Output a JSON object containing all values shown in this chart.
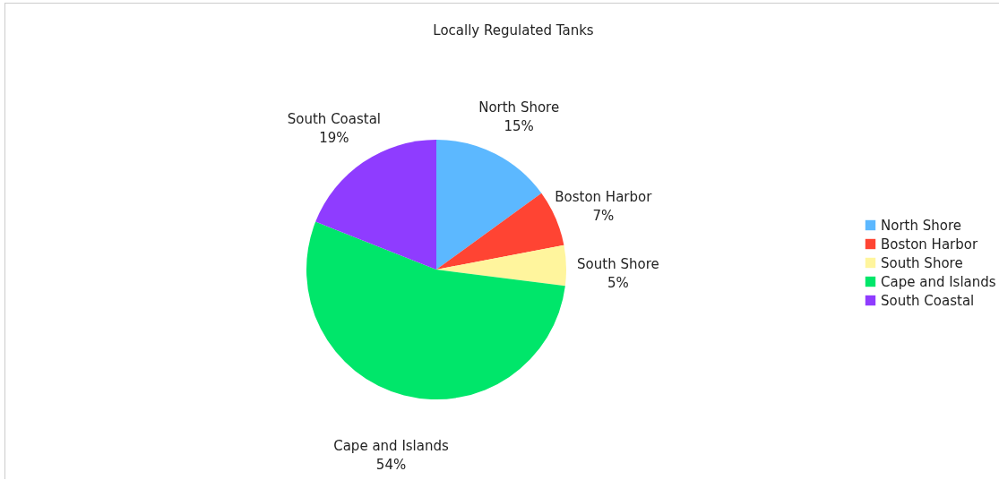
{
  "chart_data": {
    "type": "pie",
    "title": "Locally Regulated Tanks",
    "categories": [
      "North Shore",
      "Boston Harbor",
      "South Shore",
      "Cape and Islands",
      "South Coastal"
    ],
    "values": [
      15,
      7,
      5,
      54,
      19
    ],
    "value_labels": [
      "15%",
      "7%",
      "5%",
      "54%",
      "19%"
    ],
    "colors": [
      "#5cb8ff",
      "#ff4433",
      "#fff59d",
      "#00e66a",
      "#8f3cff"
    ],
    "legend": "right"
  }
}
